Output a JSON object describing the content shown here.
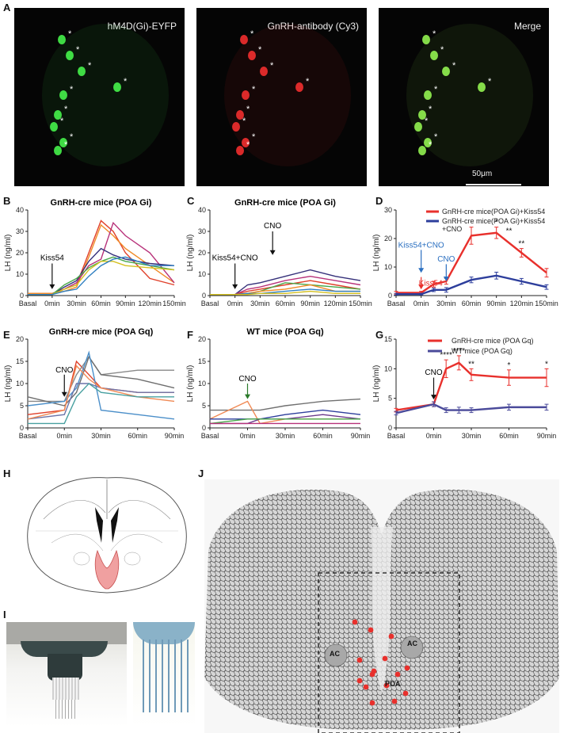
{
  "panels": {
    "A": {
      "letter": "A",
      "labels": [
        "hM4D(Gi)-EYFP",
        "GnRH-antibody (Cy3)",
        "Merge"
      ],
      "scale_bar": "50μm",
      "colors": [
        "#49ff4f",
        "#ff3030",
        "#9aff55"
      ]
    },
    "B": {
      "letter": "B"
    },
    "C": {
      "letter": "C"
    },
    "D": {
      "letter": "D"
    },
    "E": {
      "letter": "E"
    },
    "F": {
      "letter": "F"
    },
    "G": {
      "letter": "G"
    },
    "H": {
      "letter": "H"
    },
    "I": {
      "letter": "I"
    },
    "J": {
      "letter": "J",
      "labels": {
        "ac_left": "AC",
        "ac_right": "AC",
        "poa": "POA"
      }
    }
  },
  "chart_data": [
    {
      "id": "B",
      "type": "line",
      "title": "GnRH-cre mice (POA Gi)",
      "ylabel": "LH (ng/ml)",
      "categories": [
        "Basal",
        "0min",
        "30min",
        "60min",
        "90min",
        "120min",
        "150min"
      ],
      "x": [
        0,
        0.5,
        1,
        1.5,
        2,
        2.5,
        3,
        3.5,
        4,
        5,
        6
      ],
      "yticks": [
        0,
        10,
        20,
        30,
        40
      ],
      "ylim": [
        0,
        40
      ],
      "annotation": "Kiss54",
      "series": [
        {
          "color": "#e0402a",
          "values": [
            1,
            1,
            1,
            3,
            5,
            20,
            35,
            30,
            20,
            8,
            5
          ]
        },
        {
          "color": "#f08a25",
          "values": [
            1,
            1,
            1,
            2,
            4,
            18,
            33,
            28,
            22,
            14,
            6
          ]
        },
        {
          "color": "#b8327a",
          "values": [
            0.5,
            0.5,
            0.5,
            3,
            6,
            14,
            17,
            34,
            28,
            20,
            6
          ]
        },
        {
          "color": "#35307a",
          "values": [
            0.5,
            0.5,
            0.5,
            4,
            7,
            16,
            22,
            19,
            17,
            15,
            14
          ]
        },
        {
          "color": "#4aa84a",
          "values": [
            0.5,
            0.5,
            0.5,
            5,
            8,
            13,
            16,
            18,
            16,
            14,
            12
          ]
        },
        {
          "color": "#d4c020",
          "values": [
            0.5,
            0.5,
            0.5,
            3,
            5,
            12,
            16,
            16,
            14,
            13,
            12
          ]
        },
        {
          "color": "#2f7fc0",
          "values": [
            0.5,
            0.5,
            0.5,
            2,
            3,
            9,
            14,
            17,
            18,
            14,
            14
          ]
        }
      ]
    },
    {
      "id": "C",
      "type": "line",
      "title": "GnRH-cre mice (POA Gi)",
      "ylabel": "LH (ng/ml)",
      "categories": [
        "Basal",
        "0min",
        "30min",
        "60min",
        "90min",
        "120min",
        "150min"
      ],
      "x": [
        0,
        0.5,
        1,
        1.5,
        2,
        3,
        4,
        5,
        6
      ],
      "yticks": [
        0,
        10,
        20,
        30,
        40
      ],
      "ylim": [
        0,
        40
      ],
      "annotation_a": "Kiss54+CNO",
      "annotation_b": "CNO",
      "series": [
        {
          "color": "#35307a",
          "values": [
            0.5,
            0.5,
            0.5,
            5,
            6,
            9,
            12,
            9,
            7
          ]
        },
        {
          "color": "#b8327a",
          "values": [
            0.5,
            0.5,
            0.5,
            3,
            4,
            7,
            9,
            7,
            5
          ]
        },
        {
          "color": "#e0402a",
          "values": [
            0.5,
            0.5,
            0.5,
            2,
            3,
            5,
            7,
            5,
            3
          ]
        },
        {
          "color": "#4aa84a",
          "values": [
            0.5,
            0.5,
            0.5,
            1,
            2,
            6,
            5,
            4,
            3
          ]
        },
        {
          "color": "#f08a25",
          "values": [
            0.5,
            0.5,
            0.5,
            1,
            2,
            3,
            5,
            2,
            2
          ]
        },
        {
          "color": "#2f7fc0",
          "values": [
            0.5,
            0.5,
            0.5,
            1,
            1,
            2,
            3,
            2,
            2
          ]
        },
        {
          "color": "#d4c020",
          "values": [
            0.5,
            0.5,
            0.5,
            0.5,
            1,
            1,
            2,
            1,
            1
          ]
        }
      ]
    },
    {
      "id": "D",
      "type": "line",
      "title": "",
      "ylabel": "LH (ng/ml)",
      "categories": [
        "Basal",
        "0min",
        "30min",
        "60min",
        "90min",
        "120min",
        "150min"
      ],
      "x": [
        0,
        1,
        1.5,
        2,
        3,
        4,
        5,
        6
      ],
      "yticks": [
        0,
        10,
        20,
        30
      ],
      "ylim": [
        0,
        30
      ],
      "annot_blue": "Kiss54+CNO",
      "annot_cno": "CNO",
      "annot_red": "Kiss54",
      "legend": [
        "GnRH-cre mice(POA Gi)+Kiss54",
        "GnRH-cre mice(POA Gi)+Kiss54",
        "+CNO"
      ],
      "series": [
        {
          "color": "#e8302c",
          "values": [
            1,
            1,
            4,
            5,
            21,
            22,
            15,
            8
          ],
          "err": [
            0.5,
            0.5,
            1,
            1,
            3,
            2,
            1.5,
            1.5
          ]
        },
        {
          "color": "#2d3e9c",
          "values": [
            0.5,
            0.5,
            2,
            2,
            5.5,
            7,
            5,
            3
          ],
          "err": [
            0.3,
            0.3,
            0.6,
            0.8,
            1,
            1.2,
            1,
            0.8
          ]
        }
      ],
      "stars": [
        {
          "x": 4,
          "label": "*"
        },
        {
          "x": 4.5,
          "label": "**"
        },
        {
          "x": 5,
          "label": "**"
        }
      ]
    },
    {
      "id": "E",
      "type": "line",
      "title": "GnRH-cre mice (POA Gq)",
      "ylabel": "LH (ng/ml)",
      "categories": [
        "Basal",
        "0min",
        "30min",
        "60min",
        "90min"
      ],
      "x": [
        0,
        1,
        1.33,
        1.67,
        2,
        3,
        4
      ],
      "yticks": [
        0,
        5,
        10,
        15,
        20
      ],
      "ylim": [
        0,
        20
      ],
      "annotation": "CNO",
      "series": [
        {
          "color": "#e0402a",
          "values": [
            3,
            4,
            15,
            12,
            9,
            8,
            8
          ]
        },
        {
          "color": "#888888",
          "values": [
            6,
            6,
            12,
            16,
            12,
            13,
            13
          ]
        },
        {
          "color": "#6e6e6e",
          "values": [
            7,
            5,
            8,
            16,
            12,
            11,
            9
          ]
        },
        {
          "color": "#4b8fc9",
          "values": [
            5,
            6,
            9,
            17,
            4,
            3,
            2
          ]
        },
        {
          "color": "#6b74a8",
          "values": [
            2,
            3,
            10,
            10,
            9,
            8,
            8
          ]
        },
        {
          "color": "#f08a55",
          "values": [
            2,
            4,
            14,
            11,
            9,
            7,
            6
          ]
        },
        {
          "color": "#48a0a0",
          "values": [
            1,
            1,
            7,
            10,
            8,
            7,
            7
          ]
        }
      ]
    },
    {
      "id": "F",
      "type": "line",
      "title": "WT mice (POA Gq)",
      "ylabel": "LH (ng/ml)",
      "categories": [
        "Basal",
        "0min",
        "30min",
        "60min",
        "90min"
      ],
      "x": [
        0,
        1,
        1.33,
        2,
        3,
        4
      ],
      "yticks": [
        0,
        5,
        10,
        15,
        20
      ],
      "ylim": [
        0,
        20
      ],
      "annotation": "CNO",
      "series": [
        {
          "color": "#707070",
          "values": [
            4,
            4,
            4,
            5,
            6,
            6.5
          ]
        },
        {
          "color": "#f08a55",
          "values": [
            2,
            6,
            1,
            2,
            2,
            2
          ]
        },
        {
          "color": "#2d3e9c",
          "values": [
            2,
            2,
            2,
            3,
            4,
            3
          ]
        },
        {
          "color": "#6b3a8c",
          "values": [
            1,
            1,
            2,
            2,
            3,
            2
          ]
        },
        {
          "color": "#4aa84a",
          "values": [
            1,
            2,
            2,
            2,
            2,
            2
          ]
        },
        {
          "color": "#b8327a",
          "values": [
            1,
            1,
            1,
            1,
            1,
            1
          ]
        }
      ]
    },
    {
      "id": "G",
      "type": "line",
      "title": "",
      "ylabel": "LH (ng/ml)",
      "categories": [
        "Basal",
        "0min",
        "30min",
        "60min",
        "90min"
      ],
      "x": [
        0,
        1,
        1.33,
        1.67,
        2,
        3,
        4
      ],
      "yticks": [
        0,
        5,
        10,
        15
      ],
      "ylim": [
        0,
        15
      ],
      "annotation": "CNO",
      "legend": [
        "GnRH-cre mice (POA Gq)",
        "WT mice (POA Gq)"
      ],
      "series": [
        {
          "color": "#e8302c",
          "values": [
            3,
            4,
            10,
            11,
            9,
            8.5,
            8.5
          ],
          "err": [
            0.3,
            0.4,
            1.5,
            1.2,
            1,
            1.3,
            1.5
          ]
        },
        {
          "color": "#4a4a9a",
          "values": [
            2.5,
            4,
            3,
            3,
            3,
            3.5,
            3.5
          ],
          "err": [
            0.3,
            0.4,
            0.4,
            0.5,
            0.4,
            0.5,
            0.5
          ]
        }
      ],
      "stars": [
        {
          "x": 1.33,
          "label": "****"
        },
        {
          "x": 1.67,
          "label": "****"
        },
        {
          "x": 2,
          "label": "**"
        },
        {
          "x": 3,
          "label": "*"
        },
        {
          "x": 4,
          "label": "*"
        }
      ]
    }
  ]
}
